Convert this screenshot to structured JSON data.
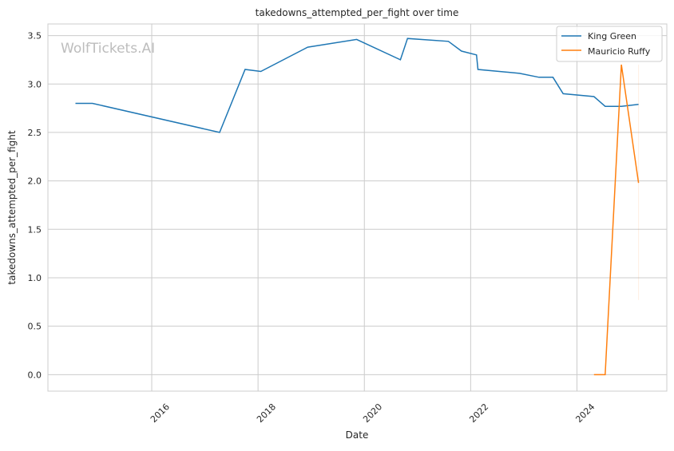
{
  "chart_data": {
    "type": "line",
    "title": "takedowns_attempted_per_fight over time",
    "xlabel": "Date",
    "ylabel": "takedowns_attempted_per_fight",
    "watermark": "WolfTickets.AI",
    "xlim": [
      "2014-01-18",
      "2025-09-10"
    ],
    "ylim": [
      -0.17,
      3.62
    ],
    "xticks": [
      "2016",
      "2018",
      "2020",
      "2022",
      "2024"
    ],
    "yticks": [
      "0.0",
      "0.5",
      "1.0",
      "1.5",
      "2.0",
      "2.5",
      "3.0",
      "3.5"
    ],
    "grid": true,
    "legend_position": "top-right",
    "series": [
      {
        "name": "King Green",
        "color": "#1f77b4",
        "x": [
          "2014-07-26",
          "2014-11-20",
          "2017-04-12",
          "2017-10-04",
          "2018-01-20",
          "2018-12-08",
          "2019-11-09",
          "2020-09-05",
          "2020-10-24",
          "2021-08-01",
          "2021-10-30",
          "2022-02-10",
          "2022-02-20",
          "2022-12-03",
          "2023-04-15",
          "2023-07-20",
          "2023-09-28",
          "2024-04-27",
          "2024-07-13",
          "2024-11-02",
          "2025-02-28"
        ],
        "y": [
          2.8,
          2.8,
          2.5,
          3.15,
          3.13,
          3.38,
          3.46,
          3.25,
          3.47,
          3.44,
          3.34,
          3.3,
          3.15,
          3.11,
          3.07,
          3.07,
          2.9,
          2.87,
          2.77,
          2.77,
          2.79
        ]
      },
      {
        "name": "Mauricio Ruffy",
        "color": "#ff7f0e",
        "x": [
          "2024-04-27",
          "2024-07-13",
          "2024-11-02",
          "2025-02-28"
        ],
        "y": [
          0.0,
          0.0,
          3.2,
          1.98
        ]
      }
    ]
  }
}
